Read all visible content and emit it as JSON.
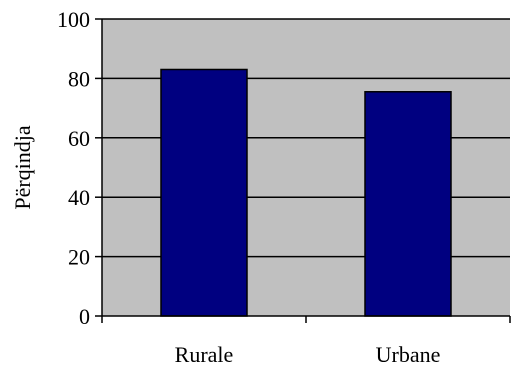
{
  "chart_data": {
    "type": "bar",
    "categories": [
      "Rurale",
      "Urbane"
    ],
    "values": [
      83,
      75.5
    ],
    "title": "",
    "xlabel": "",
    "ylabel": "Përqindja",
    "ylim": [
      0,
      100
    ],
    "yticks": [
      0,
      20,
      40,
      60,
      80,
      100
    ],
    "grid": true,
    "plot_background": "#c0c0c0",
    "bar_color": "#000080",
    "gridline_color": "#000000"
  }
}
